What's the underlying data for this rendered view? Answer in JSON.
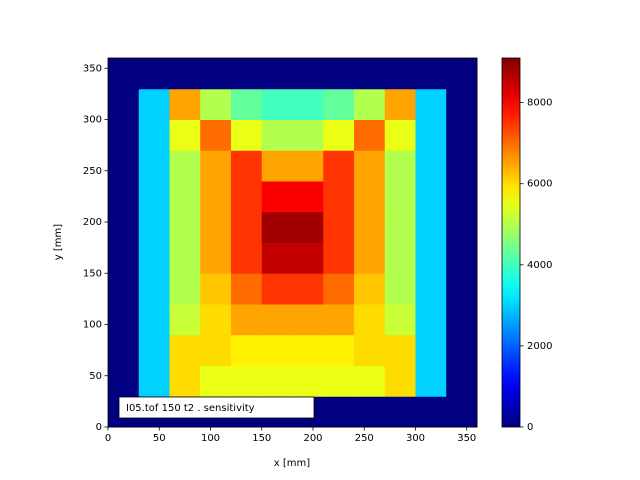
{
  "chart_data": {
    "type": "heatmap",
    "xlabel": "x [mm]",
    "ylabel": "y [mm]",
    "annotation": "I05.tof 150 t2 .  sensitivity",
    "x_bins": [
      0,
      30,
      60,
      90,
      120,
      150,
      180,
      210,
      240,
      270,
      300,
      330,
      360
    ],
    "y_bins": [
      0,
      30,
      60,
      90,
      120,
      150,
      180,
      210,
      240,
      270,
      300,
      330,
      360
    ],
    "z": [
      [
        0,
        0,
        0,
        0,
        0,
        0,
        0,
        0,
        0,
        0,
        0,
        0
      ],
      [
        0,
        3000,
        6000,
        5500,
        5500,
        5500,
        5500,
        5500,
        5500,
        6000,
        3000,
        0
      ],
      [
        0,
        3000,
        6000,
        6000,
        5800,
        5800,
        5800,
        5800,
        6000,
        6000,
        3000,
        0
      ],
      [
        0,
        3000,
        5200,
        6000,
        6500,
        6500,
        6500,
        6500,
        6000,
        5200,
        3000,
        0
      ],
      [
        0,
        3000,
        5000,
        6200,
        7000,
        7500,
        7500,
        7000,
        6200,
        5000,
        3000,
        0
      ],
      [
        0,
        3000,
        5000,
        6500,
        7500,
        8500,
        8500,
        7500,
        6500,
        5000,
        3000,
        0
      ],
      [
        0,
        3000,
        5000,
        6500,
        7500,
        8800,
        8800,
        7500,
        6500,
        5000,
        3000,
        0
      ],
      [
        0,
        3000,
        5000,
        6500,
        7500,
        8000,
        8000,
        7500,
        6500,
        5000,
        3000,
        0
      ],
      [
        0,
        3000,
        5000,
        6500,
        7500,
        6500,
        6500,
        7500,
        6500,
        5000,
        3000,
        0
      ],
      [
        0,
        3000,
        5500,
        7000,
        5500,
        5000,
        5000,
        5500,
        7000,
        5500,
        3000,
        0
      ],
      [
        0,
        3000,
        6500,
        5000,
        4300,
        4000,
        4000,
        4300,
        5000,
        6500,
        3000,
        0
      ],
      [
        0,
        0,
        0,
        0,
        0,
        0,
        0,
        0,
        0,
        0,
        0,
        0
      ]
    ],
    "colormap": "jet",
    "xlim": [
      0,
      360
    ],
    "ylim": [
      0,
      360
    ],
    "xticks": [
      0,
      50,
      100,
      150,
      200,
      250,
      300,
      350
    ],
    "yticks": [
      0,
      50,
      100,
      150,
      200,
      250,
      300,
      350
    ],
    "clim": [
      0,
      9100
    ],
    "cticks": [
      0,
      2000,
      4000,
      6000,
      8000
    ]
  }
}
